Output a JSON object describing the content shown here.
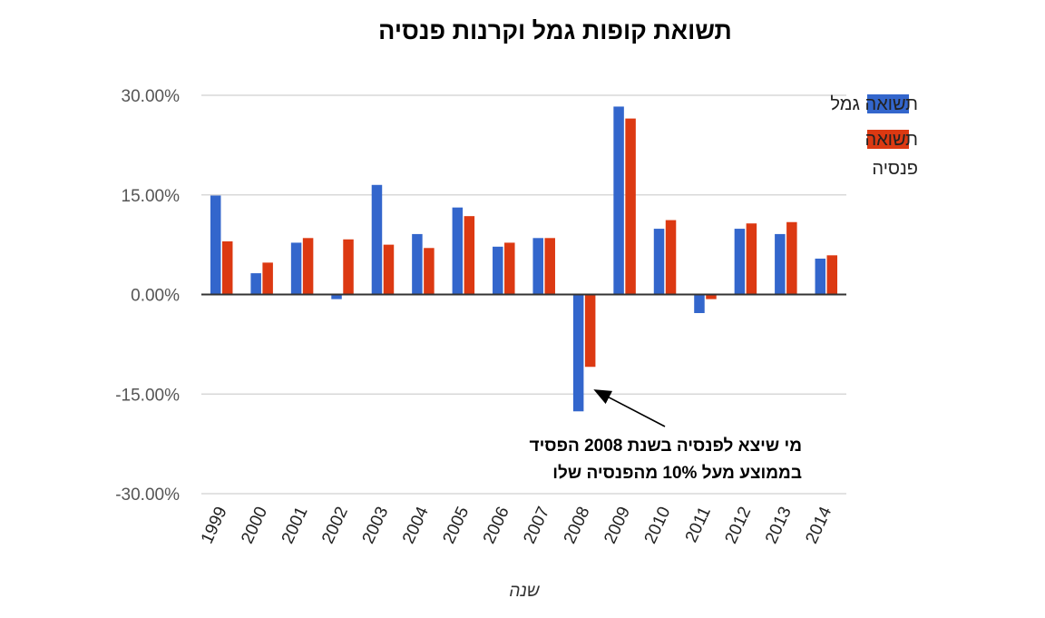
{
  "chart_data": {
    "type": "bar",
    "title": "תשואת קופות גמל וקרנות פנסיה",
    "xlabel": "שנה",
    "ylabel": "",
    "ylim": [
      -30,
      30
    ],
    "yticks": [
      30,
      15,
      0,
      -15,
      -30
    ],
    "ytick_labels": [
      "30.00%",
      "15.00%",
      "0.00%",
      "-15.00%",
      "-30.00%"
    ],
    "grid": true,
    "legend_position": "right",
    "categories": [
      "1999",
      "2000",
      "2001",
      "2002",
      "2003",
      "2004",
      "2005",
      "2006",
      "2007",
      "2008",
      "2009",
      "2010",
      "2011",
      "2012",
      "2013",
      "2014"
    ],
    "series": [
      {
        "name": "תשואה גמל",
        "color": "#3366cc",
        "values": [
          14.9,
          3.2,
          7.8,
          -0.7,
          16.5,
          9.1,
          13.1,
          7.2,
          8.5,
          -17.6,
          28.3,
          9.9,
          -2.8,
          9.9,
          9.1,
          5.4
        ]
      },
      {
        "name": "תשואה פנסיה",
        "color": "#dc3912",
        "values": [
          8.0,
          4.8,
          8.5,
          8.3,
          7.5,
          7.0,
          11.8,
          7.8,
          8.5,
          -10.9,
          26.5,
          11.2,
          -0.7,
          10.7,
          10.9,
          5.9
        ]
      }
    ],
    "annotation": {
      "lines": [
        "מי שיצא לפנסיה בשנת 2008 הפסיד",
        "בממוצע מעל 10%  מהפנסיה שלו"
      ],
      "target_category": "2008",
      "target_value": -14.5
    }
  }
}
